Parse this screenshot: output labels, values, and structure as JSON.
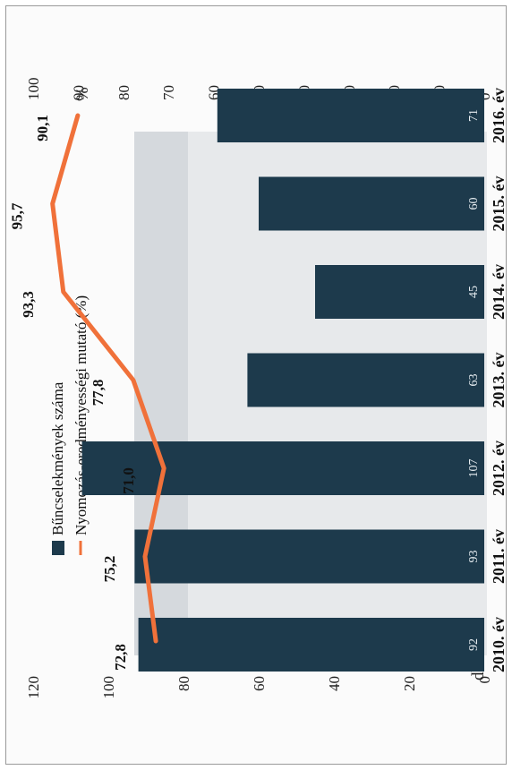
{
  "chart_data": {
    "type": "bar",
    "categories": [
      "2010. év",
      "2011. év",
      "2012. év",
      "2013. év",
      "2014. év",
      "2015. év",
      "2016. év"
    ],
    "series": [
      {
        "name": "Bűncselekmények száma",
        "type": "bar",
        "axis": "left",
        "values": [
          92,
          93,
          107,
          63,
          45,
          60,
          71
        ],
        "labels": [
          "92",
          "93",
          "107",
          "63",
          "45",
          "60",
          "71"
        ],
        "color": "#1d3a4c"
      },
      {
        "name": "Nyomozás-eredményességi mutató (%)",
        "type": "line",
        "axis": "right",
        "values": [
          72.8,
          75.2,
          71.0,
          77.8,
          93.3,
          95.7,
          90.1
        ],
        "labels": [
          "72,8",
          "75,2",
          "71,0",
          "77,8",
          "93,3",
          "95,7",
          "90,1"
        ],
        "color": "#f0713a"
      }
    ],
    "y_left": {
      "unit_label": "db",
      "ylim": [
        0,
        120
      ],
      "ticks": [
        "0",
        "20",
        "40",
        "60",
        "80",
        "100",
        "120"
      ]
    },
    "y_right": {
      "unit_label": "%",
      "ylim": [
        0,
        100
      ],
      "ticks": [
        "0",
        "10",
        "20",
        "30",
        "40",
        "50",
        "60",
        "70",
        "80",
        "90",
        "100"
      ]
    },
    "legend_placement": "top",
    "grid": false,
    "orientation": "page rotated 90° counter-clockwise"
  }
}
